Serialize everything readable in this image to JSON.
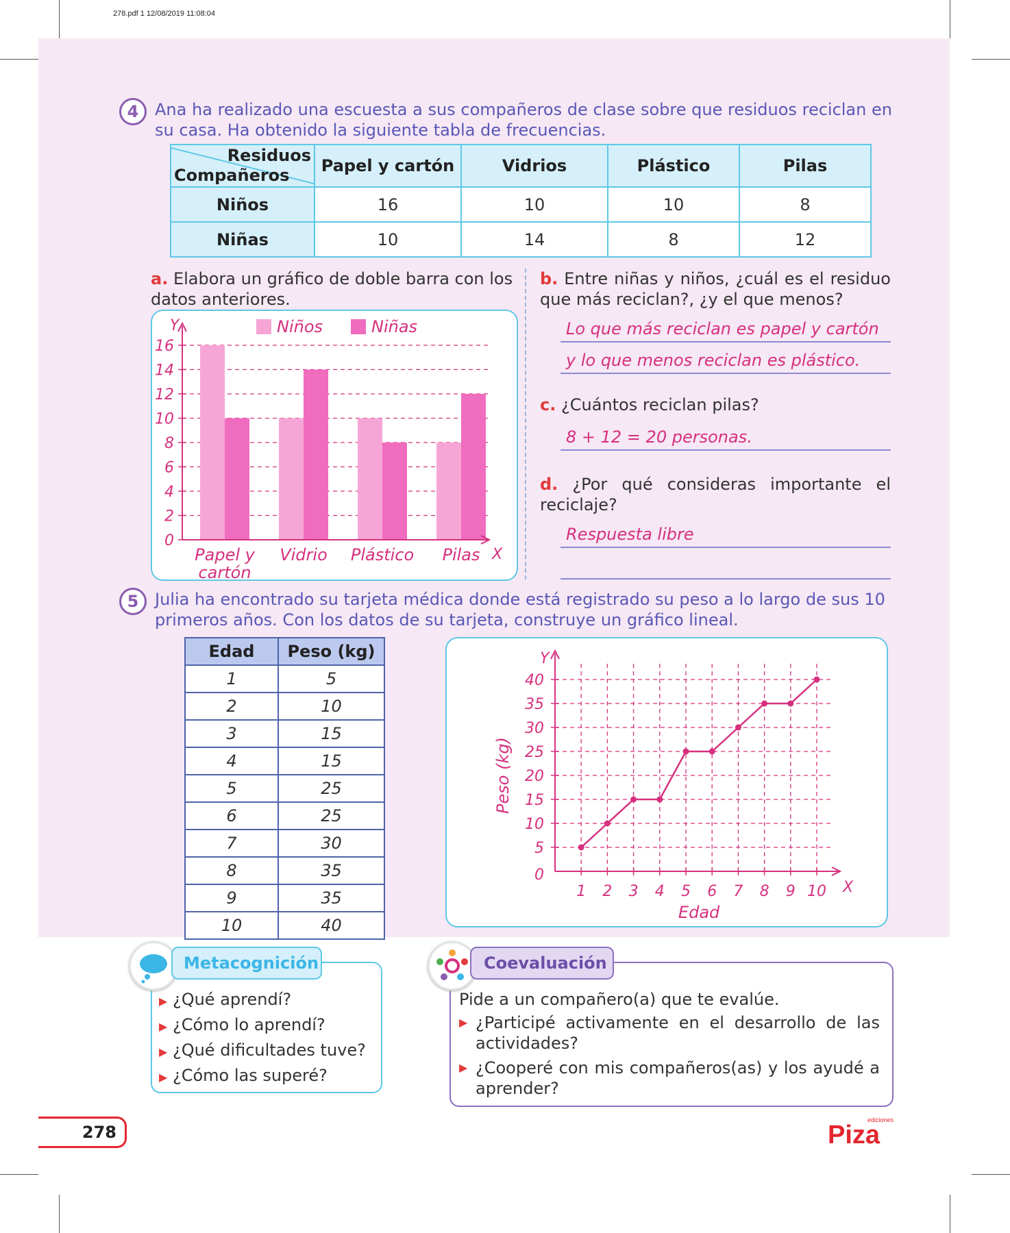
{
  "pdf_header": "278.pdf   1   12/08/2019   11:08:04",
  "q4": {
    "number": "4",
    "text": "Ana ha realizado una escuesta a sus compañeros de clase sobre que residuos reciclan en su casa. Ha obtenido la siguiente tabla de frecuencias.",
    "table": {
      "corner_top": "Residuos",
      "corner_bottom": "Compañeros",
      "columns": [
        "Papel y cartón",
        "Vidrios",
        "Plástico",
        "Pilas"
      ],
      "rows": [
        {
          "label": "Niños",
          "values": [
            "16",
            "10",
            "10",
            "8"
          ]
        },
        {
          "label": "Niñas",
          "values": [
            "10",
            "14",
            "8",
            "12"
          ]
        }
      ]
    },
    "a": {
      "letter": "a.",
      "text": "Elabora un gráfico de doble barra con los datos anteriores."
    },
    "b": {
      "letter": "b.",
      "text": "Entre niñas y niños, ¿cuál es el residuo que más reciclan?, ¿y el que menos?",
      "answer1": "Lo que más reciclan es papel y cartón",
      "answer2": "y lo que menos reciclan es plástico."
    },
    "c": {
      "letter": "c.",
      "text": "¿Cuántos reciclan pilas?",
      "answer": "8 + 12 = 20 personas."
    },
    "d": {
      "letter": "d.",
      "text": "¿Por qué consideras importante el reciclaje?",
      "answer": "Respuesta libre"
    }
  },
  "q5": {
    "number": "5",
    "text": "Julia ha encontrado su tarjeta médica donde está registrado su peso a lo largo de sus 10 primeros años. Con los datos de su tarjeta, construye un gráfico lineal.",
    "table": {
      "headers": [
        "Edad",
        "Peso (kg)"
      ],
      "rows": [
        [
          "1",
          "5"
        ],
        [
          "2",
          "10"
        ],
        [
          "3",
          "15"
        ],
        [
          "4",
          "15"
        ],
        [
          "5",
          "25"
        ],
        [
          "6",
          "25"
        ],
        [
          "7",
          "30"
        ],
        [
          "8",
          "35"
        ],
        [
          "9",
          "35"
        ],
        [
          "10",
          "40"
        ]
      ]
    }
  },
  "chart_data": [
    {
      "type": "bar",
      "categories": [
        "Papel y\ncartón",
        "Vidrio",
        "Plástico",
        "Pilas"
      ],
      "series": [
        {
          "name": "Niños",
          "values": [
            16,
            10,
            10,
            8
          ],
          "color": "#f6a6d6"
        },
        {
          "name": "Niñas",
          "values": [
            10,
            14,
            8,
            12
          ],
          "color": "#f06cbf"
        }
      ],
      "ylabel": "Y",
      "xlabel": "X",
      "yticks": [
        0,
        2,
        4,
        6,
        8,
        10,
        12,
        14,
        16
      ],
      "ylim": [
        0,
        16
      ],
      "grid": "dashed",
      "legend": "top"
    },
    {
      "type": "line",
      "x": [
        1,
        2,
        3,
        4,
        5,
        6,
        7,
        8,
        9,
        10
      ],
      "y": [
        5,
        10,
        15,
        15,
        25,
        25,
        30,
        35,
        35,
        40
      ],
      "xlabel": "Edad",
      "ylabel": "Peso (kg)",
      "x_axis_letter": "X",
      "y_axis_letter": "Y",
      "yticks": [
        0,
        5,
        10,
        15,
        20,
        25,
        30,
        35,
        40
      ],
      "xticks": [
        1,
        2,
        3,
        4,
        5,
        6,
        7,
        8,
        9,
        10
      ],
      "xlim": [
        0,
        10
      ],
      "ylim": [
        0,
        40
      ],
      "color": "#d6307f",
      "grid": "dashed"
    }
  ],
  "metacognicion": {
    "title": "Metacognición",
    "items": [
      "¿Qué aprendí?",
      "¿Cómo lo aprendí?",
      "¿Qué dificultades tuve?",
      "¿Cómo las superé?"
    ]
  },
  "coevaluacion": {
    "title": "Coevaluación",
    "intro": "Pide a un compañero(a) que te evalúe.",
    "items": [
      "¿Participé activamente en el desarrollo de las actividades?",
      "¿Cooperé con mis compañeros(as) y los ayudé a aprender?"
    ]
  },
  "page_number": "278",
  "brand": {
    "name": "Piza",
    "small": "ediciones",
    "color": "#e3262f"
  }
}
